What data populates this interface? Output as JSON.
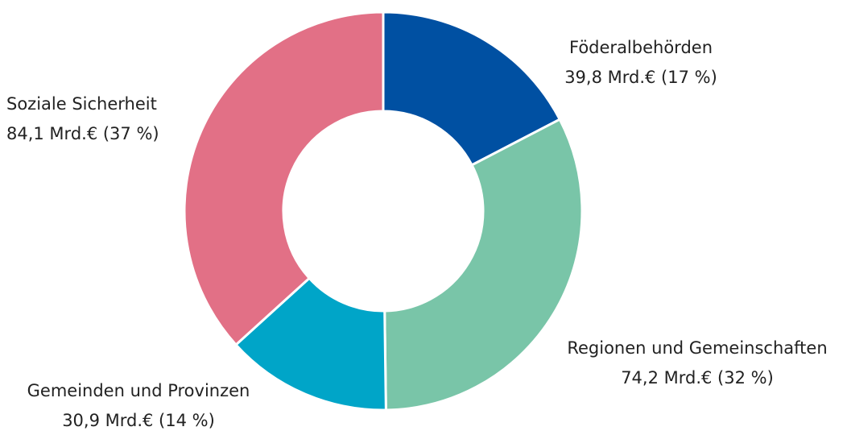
{
  "chart_data": {
    "type": "donut",
    "categories": [
      "Föderalbehörden",
      "Regionen und Gemeinschaften",
      "Gemeinden und Provinzen",
      "Soziale Sicherheit"
    ],
    "values": [
      39.8,
      74.2,
      30.9,
      84.1
    ],
    "value_labels": [
      "39,8 Mrd.€ (17 %)",
      "74,2 Mrd.€ (32 %)",
      "30,9 Mrd.€ (14 %)",
      "84,1 Mrd.€ (37 %)"
    ],
    "colors": [
      "#0050a2",
      "#79c5a8",
      "#00a5c8",
      "#e27086"
    ]
  }
}
